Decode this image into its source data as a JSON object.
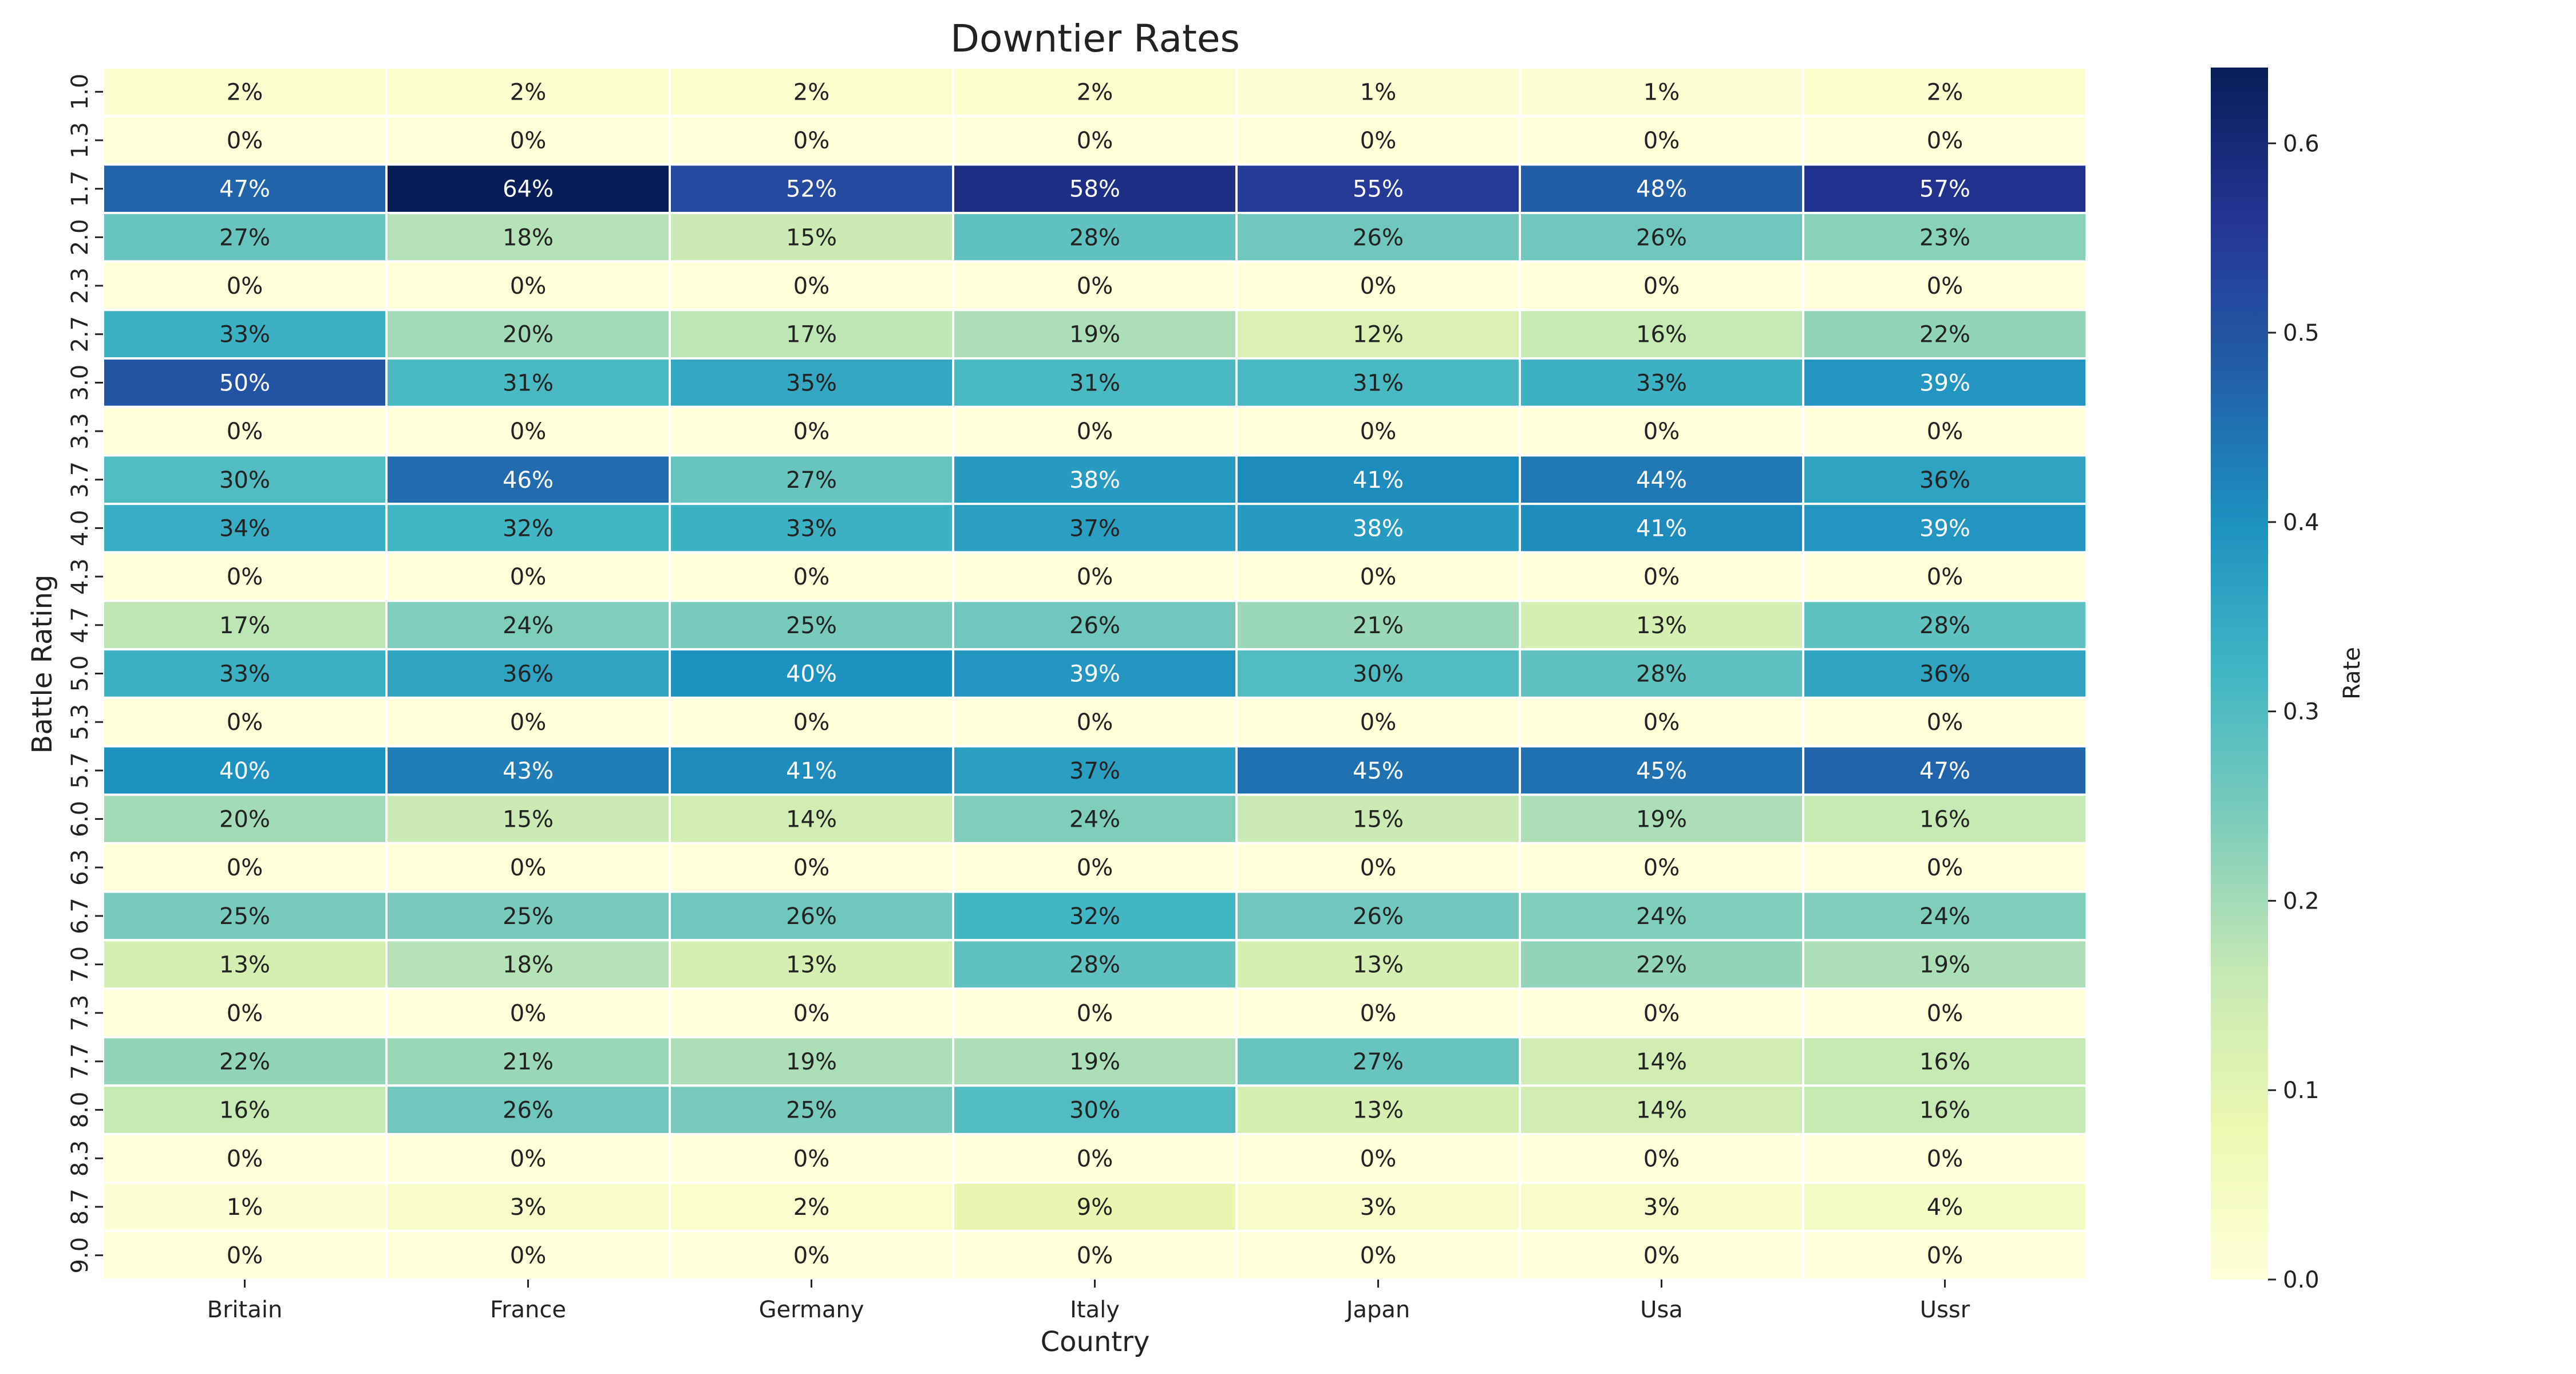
{
  "chart_data": {
    "type": "heatmap",
    "title": "Downtier Rates",
    "xlabel": "Country",
    "ylabel": "Battle Rating",
    "x_categories": [
      "Britain",
      "France",
      "Germany",
      "Italy",
      "Japan",
      "Usa",
      "Ussr"
    ],
    "y_categories": [
      "1.0",
      "1.3",
      "1.7",
      "2.0",
      "2.3",
      "2.7",
      "3.0",
      "3.3",
      "3.7",
      "4.0",
      "4.3",
      "4.7",
      "5.0",
      "5.3",
      "5.7",
      "6.0",
      "6.3",
      "6.7",
      "7.0",
      "7.3",
      "7.7",
      "8.0",
      "8.3",
      "8.7",
      "9.0"
    ],
    "values": [
      [
        0.02,
        0.02,
        0.02,
        0.02,
        0.01,
        0.01,
        0.02
      ],
      [
        0.0,
        0.0,
        0.0,
        0.0,
        0.0,
        0.0,
        0.0
      ],
      [
        0.47,
        0.64,
        0.52,
        0.58,
        0.55,
        0.48,
        0.57
      ],
      [
        0.27,
        0.18,
        0.15,
        0.28,
        0.26,
        0.26,
        0.23
      ],
      [
        0.0,
        0.0,
        0.0,
        0.0,
        0.0,
        0.0,
        0.0
      ],
      [
        0.33,
        0.2,
        0.17,
        0.19,
        0.12,
        0.16,
        0.22
      ],
      [
        0.5,
        0.31,
        0.35,
        0.31,
        0.31,
        0.33,
        0.39
      ],
      [
        0.0,
        0.0,
        0.0,
        0.0,
        0.0,
        0.0,
        0.0
      ],
      [
        0.3,
        0.46,
        0.27,
        0.38,
        0.41,
        0.44,
        0.36
      ],
      [
        0.34,
        0.32,
        0.33,
        0.37,
        0.38,
        0.41,
        0.39
      ],
      [
        0.0,
        0.0,
        0.0,
        0.0,
        0.0,
        0.0,
        0.0
      ],
      [
        0.17,
        0.24,
        0.25,
        0.26,
        0.21,
        0.13,
        0.28
      ],
      [
        0.33,
        0.36,
        0.4,
        0.39,
        0.3,
        0.28,
        0.36
      ],
      [
        0.0,
        0.0,
        0.0,
        0.0,
        0.0,
        0.0,
        0.0
      ],
      [
        0.4,
        0.43,
        0.41,
        0.37,
        0.45,
        0.45,
        0.47
      ],
      [
        0.2,
        0.15,
        0.14,
        0.24,
        0.15,
        0.19,
        0.16
      ],
      [
        0.0,
        0.0,
        0.0,
        0.0,
        0.0,
        0.0,
        0.0
      ],
      [
        0.25,
        0.25,
        0.26,
        0.32,
        0.26,
        0.24,
        0.24
      ],
      [
        0.13,
        0.18,
        0.13,
        0.28,
        0.13,
        0.22,
        0.19
      ],
      [
        0.0,
        0.0,
        0.0,
        0.0,
        0.0,
        0.0,
        0.0
      ],
      [
        0.22,
        0.21,
        0.19,
        0.19,
        0.27,
        0.14,
        0.16
      ],
      [
        0.16,
        0.26,
        0.25,
        0.3,
        0.13,
        0.14,
        0.16
      ],
      [
        0.0,
        0.0,
        0.0,
        0.0,
        0.0,
        0.0,
        0.0
      ],
      [
        0.01,
        0.03,
        0.02,
        0.09,
        0.03,
        0.03,
        0.04
      ],
      [
        0.0,
        0.0,
        0.0,
        0.0,
        0.0,
        0.0,
        0.0
      ]
    ],
    "value_format": "percent",
    "colormap": "YlGnBu",
    "vmin": 0.0,
    "vmax": 0.64,
    "colorbar": {
      "label": "Rate",
      "ticks": [
        "0.0",
        "0.1",
        "0.2",
        "0.3",
        "0.4",
        "0.5",
        "0.6"
      ],
      "tick_values": [
        0.0,
        0.1,
        0.2,
        0.3,
        0.4,
        0.5,
        0.6
      ]
    },
    "grid": false,
    "legend": "colorbar-right"
  }
}
